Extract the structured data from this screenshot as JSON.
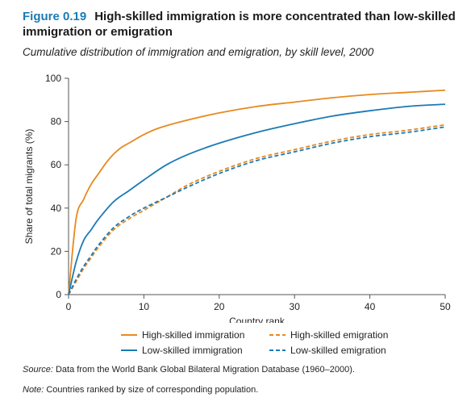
{
  "figure": {
    "number": "Figure 0.19",
    "title": "High-skilled immigration is more concentrated than low-skilled immigration or emigration",
    "subtitle": "Cumulative distribution of immigration and emigration, by skill level, 2000"
  },
  "footer": {
    "source_label": "Source:",
    "source_text": "Data from the World Bank Global Bilateral Migration Database (1960–2000).",
    "note_label": "Note:",
    "note_text": "Countries ranked by size of corresponding population."
  },
  "colors": {
    "high": "#e8891f",
    "low": "#1a7ab6",
    "axis": "#555555",
    "title_accent": "#1a7ab6"
  },
  "chart_data": {
    "type": "line",
    "xlabel": "Country rank",
    "ylabel": "Share of total migrants (%)",
    "xlim": [
      0,
      50
    ],
    "ylim": [
      0,
      100
    ],
    "xticks": [
      0,
      10,
      20,
      30,
      40,
      50
    ],
    "yticks": [
      0,
      20,
      40,
      60,
      80,
      100
    ],
    "grid": false,
    "legend_position": "bottom",
    "series": [
      {
        "name": "High-skilled immigration",
        "color": "#e8891f",
        "dash": "solid",
        "x": [
          0,
          1,
          2,
          3,
          4,
          5,
          6,
          7,
          8,
          10,
          12,
          15,
          20,
          25,
          30,
          35,
          40,
          45,
          50
        ],
        "y": [
          0,
          35,
          44,
          51,
          56,
          61,
          65,
          68,
          70,
          74,
          77,
          80,
          84,
          87,
          89,
          91,
          92.5,
          93.5,
          94.5
        ]
      },
      {
        "name": "Low-skilled immigration",
        "color": "#1a7ab6",
        "dash": "solid",
        "x": [
          0,
          1,
          2,
          3,
          4,
          6,
          8,
          10,
          13,
          16,
          20,
          25,
          30,
          35,
          40,
          45,
          50
        ],
        "y": [
          0,
          15,
          25,
          30,
          35,
          43,
          48,
          53,
          60,
          65,
          70,
          75,
          79,
          82.5,
          85,
          87,
          88
        ]
      },
      {
        "name": "High-skilled emigration",
        "color": "#e8891f",
        "dash": "dashed",
        "x": [
          0,
          1,
          2,
          3,
          4,
          6,
          8,
          10,
          13,
          16,
          20,
          25,
          30,
          35,
          40,
          45,
          50
        ],
        "y": [
          0,
          6,
          12,
          17,
          22,
          30,
          35,
          39,
          45,
          51,
          57,
          63,
          67,
          71,
          74,
          76,
          78.5
        ]
      },
      {
        "name": "Low-skilled emigration",
        "color": "#1a7ab6",
        "dash": "dashed",
        "x": [
          0,
          1,
          2,
          3,
          4,
          6,
          8,
          10,
          13,
          16,
          20,
          25,
          30,
          35,
          40,
          45,
          50
        ],
        "y": [
          0,
          7,
          13,
          18,
          23,
          31,
          36,
          40,
          45,
          50,
          56,
          62,
          66,
          70,
          73,
          75,
          77.5
        ]
      }
    ]
  }
}
